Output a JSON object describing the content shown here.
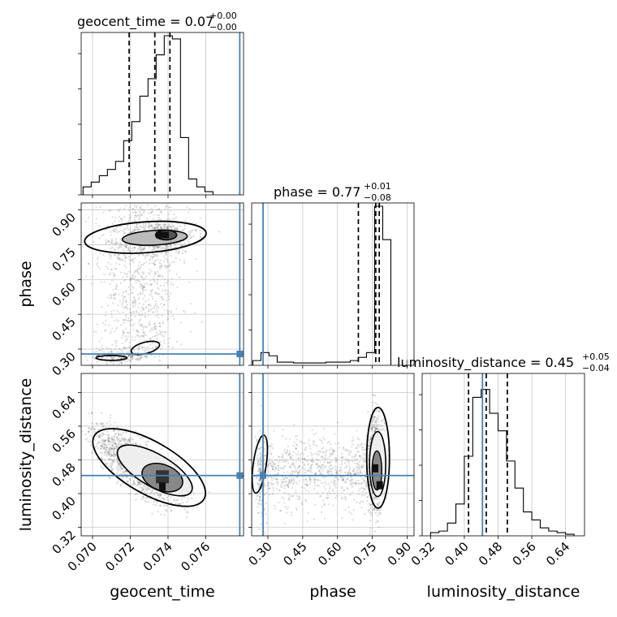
{
  "chart_data": {
    "type": "corner",
    "parameters": [
      "geocent_time",
      "phase",
      "luminosity_distance"
    ],
    "truth": {
      "geocent_time": 0.0778,
      "phase": 0.279,
      "luminosity_distance": 0.443,
      "color": "#4682b4"
    },
    "panels": {
      "geocent_time": {
        "title": "geocent_time = 0.07",
        "title_sup": "+0.00",
        "title_sub": "−0.00",
        "xlabel": "geocent_time",
        "xlim": [
          0.0694,
          0.078
        ],
        "xticks": [
          0.07,
          0.072,
          0.074,
          0.076
        ],
        "xtick_labels": [
          "0.070",
          "0.072",
          "0.074",
          "0.076"
        ],
        "quantiles": [
          0.07194,
          0.0733,
          0.0741
        ],
        "hist_edges": [
          0.0695,
          0.06993,
          0.07036,
          0.07079,
          0.07122,
          0.07165,
          0.07208,
          0.07251,
          0.07294,
          0.07337,
          0.0738,
          0.07423,
          0.07466,
          0.07509,
          0.07552,
          0.07595,
          0.07638
        ],
        "hist_counts": [
          0.05,
          0.08,
          0.12,
          0.16,
          0.21,
          0.34,
          0.46,
          0.62,
          0.73,
          0.88,
          1.0,
          0.98,
          0.36,
          0.1,
          0.05,
          0.02
        ]
      },
      "phase": {
        "title": "phase = 0.77",
        "title_sup": "+0.01",
        "title_sub": "−0.08",
        "xlabel": "phase",
        "ylabel": "phase",
        "xlim": [
          0.23,
          0.93
        ],
        "ylim": [
          0.23,
          0.93
        ],
        "ticks": [
          0.3,
          0.45,
          0.6,
          0.75,
          0.9
        ],
        "tick_labels": [
          "0.30",
          "0.45",
          "0.60",
          "0.75",
          "0.90"
        ],
        "quantiles": [
          0.69,
          0.765,
          0.78
        ],
        "hist_edges": [
          0.235,
          0.27,
          0.305,
          0.34,
          0.375,
          0.41,
          0.445,
          0.48,
          0.515,
          0.55,
          0.585,
          0.62,
          0.655,
          0.69,
          0.725,
          0.76,
          0.795,
          0.83
        ],
        "hist_counts": [
          0.03,
          0.08,
          0.06,
          0.02,
          0.02,
          0.015,
          0.015,
          0.015,
          0.015,
          0.02,
          0.02,
          0.02,
          0.03,
          0.05,
          0.08,
          1.0,
          0.79
        ]
      },
      "luminosity_distance": {
        "title": "luminosity_distance = 0.45",
        "title_sup": "+0.05",
        "title_sub": "−0.04",
        "xlabel": "luminosity_distance",
        "ylabel": "luminosity_distance",
        "xlim": [
          0.3,
          0.685
        ],
        "ylim": [
          0.3,
          0.685
        ],
        "ticks": [
          0.32,
          0.4,
          0.48,
          0.56,
          0.64
        ],
        "tick_labels": [
          "0.32",
          "0.40",
          "0.48",
          "0.56",
          "0.64"
        ],
        "quantiles": [
          0.41,
          0.452,
          0.502
        ],
        "hist_edges": [
          0.32,
          0.34,
          0.36,
          0.38,
          0.4,
          0.42,
          0.44,
          0.46,
          0.48,
          0.5,
          0.52,
          0.54,
          0.56,
          0.58,
          0.6,
          0.62,
          0.64,
          0.66
        ],
        "hist_counts": [
          0.02,
          0.03,
          0.08,
          0.2,
          0.5,
          0.87,
          0.92,
          0.77,
          0.66,
          0.47,
          0.3,
          0.15,
          0.1,
          0.05,
          0.03,
          0.02,
          0.01
        ]
      }
    },
    "contour_levels": [
      "0.5-sigma",
      "1-sigma",
      "1.5-sigma",
      "2-sigma"
    ],
    "grid": true,
    "line_color": "#000000",
    "quantile_style": "dashed"
  }
}
